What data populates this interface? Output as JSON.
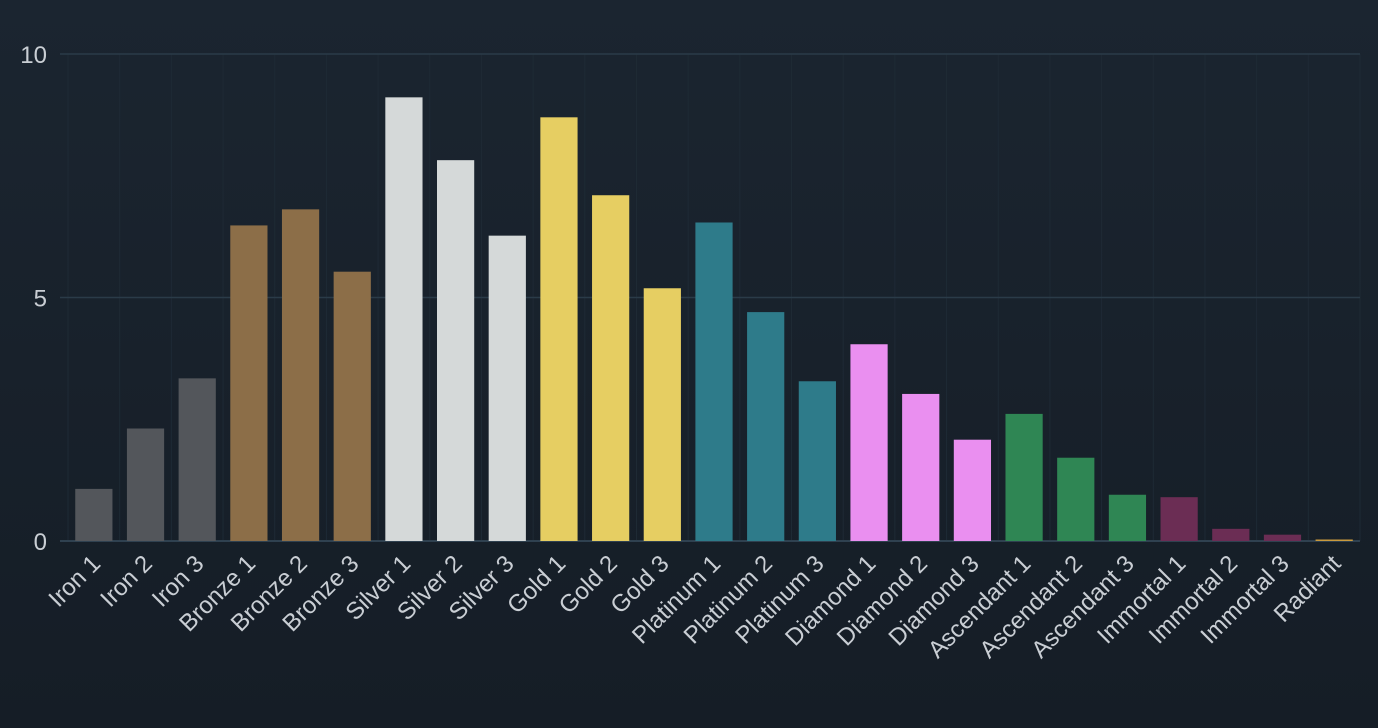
{
  "chart_data": {
    "type": "bar",
    "title": "",
    "xlabel": "",
    "ylabel": "",
    "ylim": [
      0,
      10
    ],
    "yticks": [
      0,
      5,
      10
    ],
    "grid": true,
    "categories": [
      "Iron 1",
      "Iron 2",
      "Iron 3",
      "Bronze 1",
      "Bronze 2",
      "Bronze 3",
      "Silver 1",
      "Silver 2",
      "Silver 3",
      "Gold 1",
      "Gold 2",
      "Gold 3",
      "Platinum 1",
      "Platinum 2",
      "Platinum 3",
      "Diamond 1",
      "Diamond 2",
      "Diamond 3",
      "Ascendant 1",
      "Ascendant 2",
      "Ascendant 3",
      "Immortal 1",
      "Immortal 2",
      "Immortal 3",
      "Radiant"
    ],
    "values": [
      1.07,
      2.31,
      3.34,
      6.48,
      6.81,
      5.53,
      9.11,
      7.82,
      6.27,
      8.7,
      7.1,
      5.19,
      6.54,
      4.7,
      3.28,
      4.04,
      3.02,
      2.08,
      2.61,
      1.71,
      0.95,
      0.9,
      0.25,
      0.13,
      0.03
    ],
    "colors": [
      "#53565b",
      "#53565b",
      "#53565b",
      "#8c6e48",
      "#8c6e48",
      "#8c6e48",
      "#d5d9d9",
      "#d5d9d9",
      "#d5d9d9",
      "#e6ce62",
      "#e6ce62",
      "#e6ce62",
      "#2e7b8a",
      "#2e7b8a",
      "#2e7b8a",
      "#ea8ff0",
      "#ea8ff0",
      "#ea8ff0",
      "#2f8654",
      "#2f8654",
      "#2f8654",
      "#6b2d54",
      "#6b2d54",
      "#6b2d54",
      "#c99a3e"
    ]
  },
  "theme": {
    "grid_color": "#2a3b48",
    "vgrid_color": "#1e2a35",
    "axis_color": "#2f4150",
    "text_color": "#c9ced4"
  }
}
